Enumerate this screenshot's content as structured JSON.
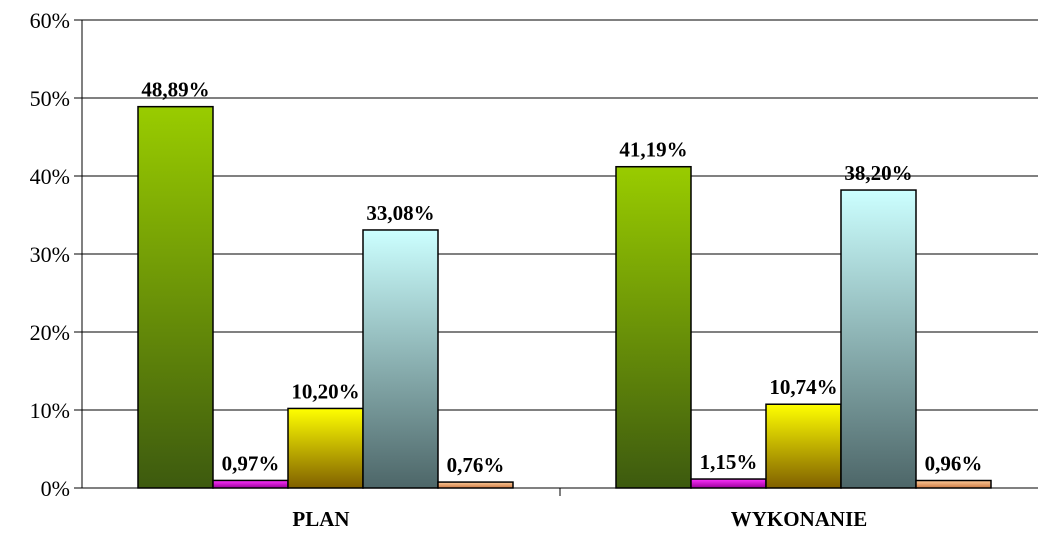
{
  "chart_data": {
    "type": "bar",
    "categories": [
      "PLAN",
      "WYKONANIE"
    ],
    "series": [
      {
        "values": [
          48.89,
          41.19
        ],
        "labels": [
          "48,89%",
          "41,19%"
        ],
        "color_top": "#99cc00",
        "color_bottom": "#3d5a0f"
      },
      {
        "values": [
          0.97,
          1.15
        ],
        "labels": [
          "0,97%",
          "1,15%"
        ],
        "color_top": "#ff33ff",
        "color_bottom": "#990099"
      },
      {
        "values": [
          10.2,
          10.74
        ],
        "labels": [
          "10,20%",
          "10,74%"
        ],
        "color_top": "#ffff00",
        "color_bottom": "#806000"
      },
      {
        "values": [
          33.08,
          38.2
        ],
        "labels": [
          "33,08%",
          "38,20%"
        ],
        "color_top": "#ccffff",
        "color_bottom": "#4d6668"
      },
      {
        "values": [
          0.76,
          0.96
        ],
        "labels": [
          "0,76%",
          "0,96%"
        ],
        "color_top": "#ffcc99",
        "color_bottom": "#cc7a44"
      }
    ],
    "ylim": [
      0,
      60
    ],
    "yticks": [
      0,
      10,
      20,
      30,
      40,
      50,
      60
    ],
    "ytick_labels": [
      "0%",
      "10%",
      "20%",
      "30%",
      "40%",
      "50%",
      "60%"
    ],
    "grid": true,
    "title": "",
    "xlabel": "",
    "ylabel": ""
  }
}
